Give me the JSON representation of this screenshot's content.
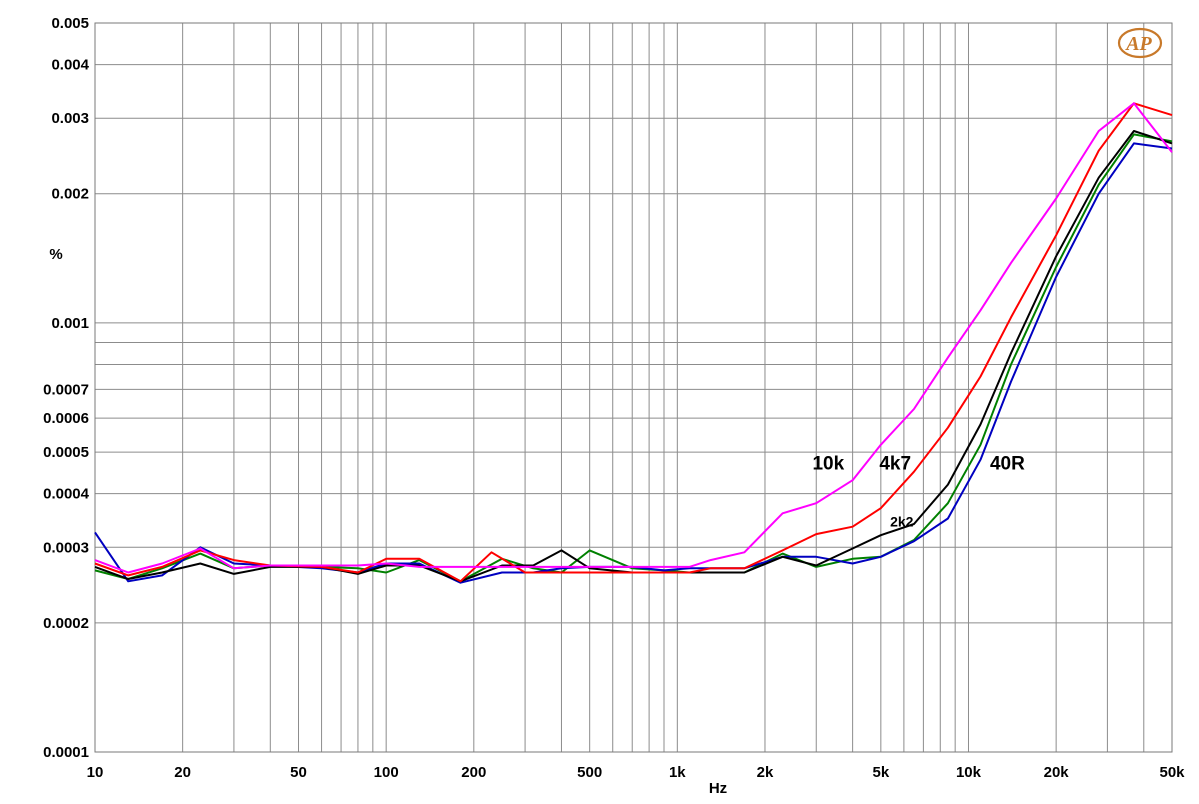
{
  "chart_data": {
    "type": "line",
    "title": "",
    "xlabel": "Hz",
    "ylabel": "%",
    "x_scale": "log",
    "y_scale": "log",
    "xlim": [
      10,
      50000
    ],
    "ylim": [
      0.0001,
      0.005
    ],
    "grid": true,
    "x_ticks": [
      {
        "value": 10,
        "label": "10"
      },
      {
        "value": 20,
        "label": "20"
      },
      {
        "value": 50,
        "label": "50"
      },
      {
        "value": 100,
        "label": "100"
      },
      {
        "value": 200,
        "label": "200"
      },
      {
        "value": 500,
        "label": "500"
      },
      {
        "value": 1000,
        "label": "1k"
      },
      {
        "value": 2000,
        "label": "2k"
      },
      {
        "value": 5000,
        "label": "5k"
      },
      {
        "value": 10000,
        "label": "10k"
      },
      {
        "value": 20000,
        "label": "20k"
      },
      {
        "value": 50000,
        "label": "50k"
      }
    ],
    "y_ticks": [
      {
        "value": 0.005,
        "label": "0.005"
      },
      {
        "value": 0.004,
        "label": "0.004"
      },
      {
        "value": 0.003,
        "label": "0.003"
      },
      {
        "value": 0.002,
        "label": "0.002"
      },
      {
        "value": 0.001,
        "label": "0.001"
      },
      {
        "value": 0.0007,
        "label": "0.0007"
      },
      {
        "value": 0.0006,
        "label": "0.0006"
      },
      {
        "value": 0.0005,
        "label": "0.0005"
      },
      {
        "value": 0.0004,
        "label": "0.0004"
      },
      {
        "value": 0.0003,
        "label": "0.0003"
      },
      {
        "value": 0.0002,
        "label": "0.0002"
      },
      {
        "value": 0.0001,
        "label": "0.0001"
      }
    ],
    "series": [
      {
        "name": "10k",
        "color": "#ff00ff",
        "x": [
          10,
          13,
          17,
          23,
          30,
          40,
          60,
          80,
          100,
          130,
          180,
          250,
          320,
          420,
          550,
          700,
          900,
          1100,
          1300,
          1700,
          2300,
          3000,
          4000,
          5000,
          6500,
          8500,
          11000,
          14000,
          20000,
          28000,
          37000,
          50000
        ],
        "y": [
          0.00028,
          0.000262,
          0.000275,
          0.000298,
          0.000268,
          0.000272,
          0.000272,
          0.000272,
          0.000275,
          0.00027,
          0.00027,
          0.00027,
          0.00027,
          0.00027,
          0.00027,
          0.00027,
          0.00027,
          0.00027,
          0.00028,
          0.000292,
          0.00036,
          0.00038,
          0.00043,
          0.00052,
          0.00063,
          0.00083,
          0.00107,
          0.00138,
          0.00195,
          0.0028,
          0.00325,
          0.0025
        ]
      },
      {
        "name": "4k7",
        "color": "#ff0000",
        "x": [
          10,
          13,
          17,
          23,
          30,
          40,
          60,
          80,
          100,
          130,
          180,
          230,
          300,
          400,
          500,
          700,
          900,
          1100,
          1300,
          1700,
          2300,
          3000,
          4000,
          5000,
          6500,
          8500,
          11000,
          14000,
          20000,
          28000,
          37000,
          50000
        ],
        "y": [
          0.000275,
          0.000258,
          0.00027,
          0.000295,
          0.00028,
          0.000272,
          0.00027,
          0.000262,
          0.000282,
          0.000282,
          0.00025,
          0.000292,
          0.000262,
          0.000262,
          0.000262,
          0.000262,
          0.000262,
          0.000262,
          0.000268,
          0.000268,
          0.000295,
          0.000322,
          0.000335,
          0.00037,
          0.00045,
          0.00057,
          0.00075,
          0.00103,
          0.0016,
          0.00252,
          0.00325,
          0.00305
        ]
      },
      {
        "name": "2k2",
        "color": "#000000",
        "x": [
          10,
          13,
          17,
          23,
          30,
          40,
          60,
          80,
          100,
          130,
          180,
          250,
          320,
          400,
          500,
          700,
          900,
          1100,
          1300,
          1700,
          2300,
          3000,
          4000,
          5000,
          6500,
          8500,
          11000,
          14000,
          20000,
          28000,
          37000,
          50000
        ],
        "y": [
          0.00027,
          0.000253,
          0.000262,
          0.000275,
          0.00026,
          0.00027,
          0.00027,
          0.00026,
          0.000272,
          0.000272,
          0.00025,
          0.000272,
          0.000272,
          0.000295,
          0.000268,
          0.000262,
          0.000262,
          0.000262,
          0.000262,
          0.000262,
          0.000285,
          0.000272,
          0.000298,
          0.00032,
          0.00034,
          0.00042,
          0.00058,
          0.00085,
          0.00143,
          0.00218,
          0.0028,
          0.00262
        ]
      },
      {
        "name": "",
        "color": "#008000",
        "x": [
          10,
          13,
          17,
          23,
          30,
          40,
          60,
          80,
          100,
          130,
          180,
          250,
          320,
          400,
          500,
          700,
          900,
          1100,
          1300,
          1700,
          2300,
          3000,
          4000,
          5000,
          6500,
          8500,
          11000,
          14000,
          20000,
          28000,
          37000,
          50000
        ],
        "y": [
          0.000265,
          0.000253,
          0.000268,
          0.00029,
          0.000268,
          0.000272,
          0.00027,
          0.000268,
          0.000262,
          0.00028,
          0.00025,
          0.000282,
          0.000268,
          0.000262,
          0.000295,
          0.000268,
          0.000265,
          0.000262,
          0.000262,
          0.000262,
          0.00029,
          0.00027,
          0.000282,
          0.000285,
          0.000312,
          0.00038,
          0.00052,
          0.0008,
          0.00135,
          0.0021,
          0.00275,
          0.00265
        ]
      },
      {
        "name": "",
        "color": "#0000c0",
        "x": [
          10,
          13,
          17,
          23,
          30,
          40,
          60,
          80,
          100,
          130,
          180,
          250,
          320,
          400,
          500,
          700,
          900,
          1100,
          1300,
          1700,
          2300,
          3000,
          4000,
          5000,
          6500,
          8500,
          11000,
          14000,
          20000,
          28000,
          37000,
          50000
        ],
        "y": [
          0.000325,
          0.00025,
          0.000258,
          0.0003,
          0.000275,
          0.000272,
          0.000268,
          0.000262,
          0.000275,
          0.000275,
          0.000248,
          0.000262,
          0.000262,
          0.000268,
          0.00027,
          0.00027,
          0.000265,
          0.000268,
          0.000268,
          0.000268,
          0.000285,
          0.000285,
          0.000275,
          0.000285,
          0.00031,
          0.00035,
          0.00048,
          0.00073,
          0.00128,
          0.002,
          0.00262,
          0.00255
        ]
      }
    ],
    "annotations": [
      {
        "text": "10k",
        "x": 3300,
        "y": 0.000455
      },
      {
        "text": "4k7",
        "x": 5600,
        "y": 0.000455
      },
      {
        "text": "2k2",
        "x": 5900,
        "y": 0.000335
      },
      {
        "text": "40R",
        "x": 13600,
        "y": 0.000455
      }
    ],
    "logo": {
      "text": "AP",
      "color": "#c8792a"
    }
  }
}
